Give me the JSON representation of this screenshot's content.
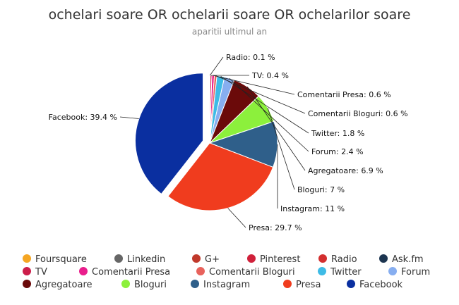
{
  "chart_data": {
    "type": "pie",
    "title": "ochelari soare OR ochelarii soare OR ochelarilor soare",
    "subtitle": "aparitii ultimul an",
    "slices": [
      {
        "name": "Foursquare",
        "value": 0,
        "color": "#f5a623",
        "label": ""
      },
      {
        "name": "Linkedin",
        "value": 0,
        "color": "#666666",
        "label": ""
      },
      {
        "name": "G+",
        "value": 0,
        "color": "#c0392b",
        "label": ""
      },
      {
        "name": "Pinterest",
        "value": 0,
        "color": "#d0203a",
        "label": ""
      },
      {
        "name": "Radio",
        "value": 0.1,
        "color": "#d32f2f",
        "label": "Radio: 0.1 %"
      },
      {
        "name": "Ask.fm",
        "value": 0,
        "color": "#1c3550",
        "label": ""
      },
      {
        "name": "TV",
        "value": 0.4,
        "color": "#cc1e4a",
        "label": "TV: 0.4 %"
      },
      {
        "name": "Comentarii Presa",
        "value": 0.6,
        "color": "#e91e8c",
        "label": "Comentarii Presa: 0.6 %"
      },
      {
        "name": "Comentarii Bloguri",
        "value": 0.6,
        "color": "#e8625c",
        "label": "Comentarii Bloguri: 0.6 %"
      },
      {
        "name": "Twitter",
        "value": 1.8,
        "color": "#3ebbe6",
        "label": "Twitter: 1.8 %"
      },
      {
        "name": "Forum",
        "value": 2.4,
        "color": "#87aef0",
        "label": "Forum: 2.4 %"
      },
      {
        "name": "Agregatoare",
        "value": 6.9,
        "color": "#6b0a0a",
        "label": "Agregatoare: 6.9 %"
      },
      {
        "name": "Bloguri",
        "value": 7.0,
        "color": "#8cf03c",
        "label": "Bloguri: 7 %"
      },
      {
        "name": "Instagram",
        "value": 11.0,
        "color": "#2f5f8a",
        "label": "Instagram: 11 %"
      },
      {
        "name": "Presa",
        "value": 29.7,
        "color": "#f03c1e",
        "label": "Presa: 29.7 %"
      },
      {
        "name": "Facebook",
        "value": 39.4,
        "color": "#0a2fa0",
        "label": "Facebook: 39.4 %",
        "sliced": true
      }
    ],
    "legend_placement": "bottom"
  }
}
